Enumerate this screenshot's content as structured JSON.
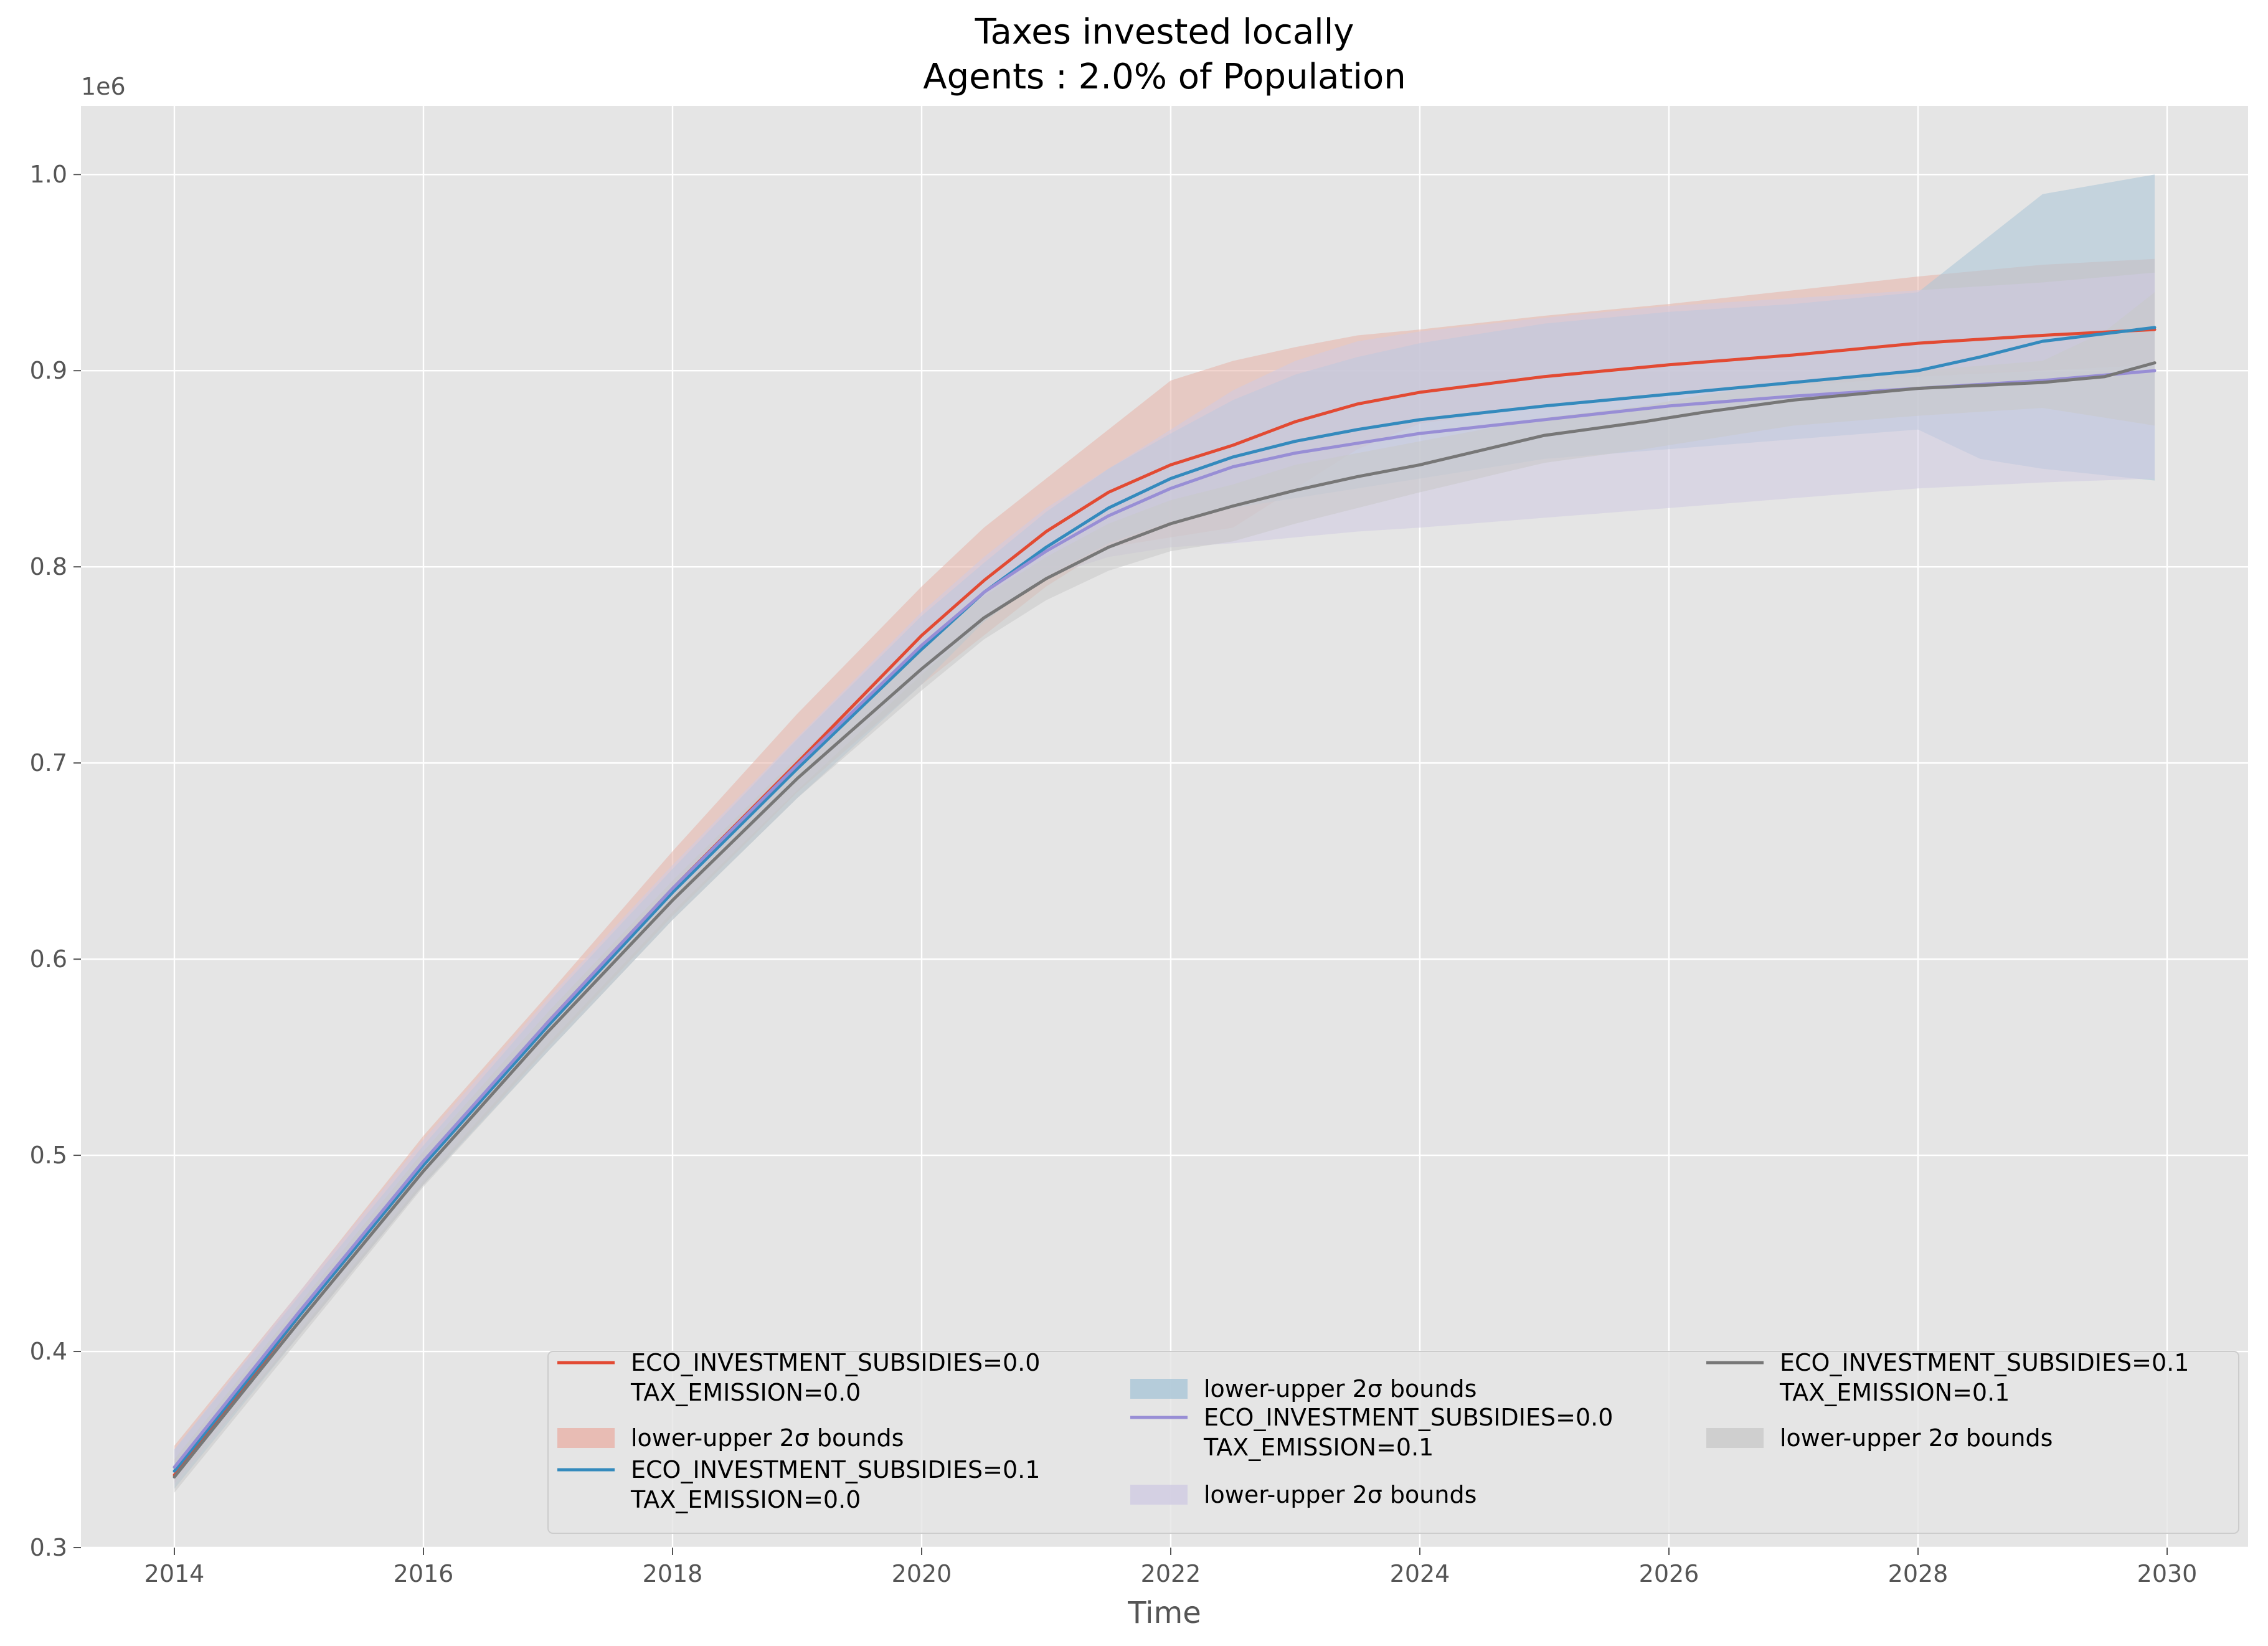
{
  "chart_data": {
    "type": "line",
    "title": "Taxes invested locally",
    "subtitle": "Agents : 2.0% of Population",
    "xlabel": "Time",
    "ylabel": "",
    "y_offset_label": "1e6",
    "xlim": [
      2013.25,
      2030.65
    ],
    "ylim": [
      0.3,
      1.035
    ],
    "y_scale_multiplier": 1000000,
    "grid": true,
    "legend_placement": "lower center, 3 columns",
    "x_ticks": [
      2014,
      2016,
      2018,
      2020,
      2022,
      2024,
      2026,
      2028,
      2030
    ],
    "x_tick_labels": [
      "2014",
      "2016",
      "2018",
      "2020",
      "2022",
      "2024",
      "2026",
      "2028",
      "2030"
    ],
    "y_ticks": [
      0.3,
      0.4,
      0.5,
      0.6,
      0.7,
      0.8,
      0.9,
      1.0
    ],
    "y_tick_labels": [
      "0.3",
      "0.4",
      "0.5",
      "0.6",
      "0.7",
      "0.8",
      "0.9",
      "1.0"
    ],
    "series": [
      {
        "name": "ECO_INVESTMENT_SUBSIDIES=0.0\nTAX_EMISSION=0.0",
        "color": "#E24A33",
        "band_color": "#E8B2A8",
        "x": [
          2014,
          2015,
          2016,
          2017,
          2018,
          2019,
          2020,
          2020.5,
          2021,
          2021.5,
          2022,
          2022.5,
          2023,
          2023.5,
          2024,
          2025,
          2026,
          2027,
          2028,
          2029,
          2029.9
        ],
        "values": [
          0.337,
          0.418,
          0.495,
          0.568,
          0.636,
          0.7,
          0.765,
          0.793,
          0.818,
          0.838,
          0.852,
          0.862,
          0.874,
          0.883,
          0.889,
          0.897,
          0.903,
          0.908,
          0.914,
          0.918,
          0.921
        ],
        "band_label": "lower-upper 2σ bounds",
        "band_upper": [
          0.352,
          0.43,
          0.51,
          0.582,
          0.655,
          0.725,
          0.79,
          0.82,
          0.845,
          0.87,
          0.895,
          0.905,
          0.912,
          0.918,
          0.921,
          0.928,
          0.934,
          0.941,
          0.948,
          0.954,
          0.957
        ],
        "band_lower": [
          0.333,
          0.408,
          0.485,
          0.555,
          0.622,
          0.685,
          0.74,
          0.765,
          0.79,
          0.81,
          0.815,
          0.82,
          0.84,
          0.86,
          0.873,
          0.882,
          0.888,
          0.892,
          0.897,
          0.9,
          0.903
        ]
      },
      {
        "name": "ECO_INVESTMENT_SUBSIDIES=0.1\nTAX_EMISSION=0.0",
        "color": "#348ABD",
        "band_color": "#A9C5D7",
        "x": [
          2014,
          2015,
          2016,
          2017,
          2018,
          2019,
          2020,
          2020.5,
          2021,
          2021.5,
          2022,
          2022.5,
          2023,
          2023.5,
          2024,
          2025,
          2026,
          2027,
          2028,
          2028.5,
          2029,
          2029.9
        ],
        "values": [
          0.339,
          0.418,
          0.495,
          0.566,
          0.634,
          0.697,
          0.758,
          0.787,
          0.81,
          0.83,
          0.845,
          0.856,
          0.864,
          0.87,
          0.875,
          0.882,
          0.888,
          0.894,
          0.9,
          0.907,
          0.915,
          0.922
        ],
        "band_label": "lower-upper 2σ bounds",
        "band_upper": [
          0.35,
          0.428,
          0.505,
          0.578,
          0.646,
          0.712,
          0.775,
          0.802,
          0.828,
          0.85,
          0.868,
          0.885,
          0.898,
          0.907,
          0.914,
          0.924,
          0.93,
          0.934,
          0.94,
          0.965,
          0.99,
          1.0
        ],
        "band_lower": [
          0.33,
          0.408,
          0.485,
          0.553,
          0.62,
          0.682,
          0.74,
          0.772,
          0.795,
          0.812,
          0.823,
          0.83,
          0.835,
          0.84,
          0.845,
          0.855,
          0.86,
          0.865,
          0.87,
          0.855,
          0.85,
          0.844
        ]
      },
      {
        "name": "ECO_INVESTMENT_SUBSIDIES=0.0\nTAX_EMISSION=0.1",
        "color": "#988ED5",
        "band_color": "#CFCBE2",
        "x": [
          2014,
          2015,
          2016,
          2017,
          2018,
          2019,
          2020,
          2020.5,
          2021,
          2021.5,
          2022,
          2022.5,
          2023,
          2023.5,
          2024,
          2025,
          2026,
          2027,
          2028,
          2029,
          2029.9
        ],
        "values": [
          0.341,
          0.42,
          0.497,
          0.568,
          0.636,
          0.699,
          0.76,
          0.787,
          0.808,
          0.826,
          0.84,
          0.851,
          0.858,
          0.863,
          0.868,
          0.875,
          0.882,
          0.887,
          0.891,
          0.895,
          0.9
        ],
        "band_label": "lower-upper 2σ bounds",
        "band_upper": [
          0.35,
          0.43,
          0.508,
          0.58,
          0.648,
          0.713,
          0.777,
          0.805,
          0.83,
          0.85,
          0.87,
          0.89,
          0.905,
          0.915,
          0.92,
          0.927,
          0.933,
          0.937,
          0.941,
          0.945,
          0.95
        ],
        "band_lower": [
          0.332,
          0.41,
          0.487,
          0.557,
          0.624,
          0.686,
          0.745,
          0.773,
          0.795,
          0.805,
          0.81,
          0.812,
          0.815,
          0.818,
          0.82,
          0.825,
          0.83,
          0.835,
          0.84,
          0.843,
          0.845
        ]
      },
      {
        "name": "ECO_INVESTMENT_SUBSIDIES=0.1\nTAX_EMISSION=0.1",
        "color": "#777777",
        "band_color": "#C9C9C9",
        "x": [
          2014,
          2015,
          2016,
          2017,
          2018,
          2019,
          2020,
          2020.5,
          2021,
          2021.5,
          2022,
          2022.5,
          2023,
          2023.5,
          2024,
          2025,
          2025.8,
          2026.3,
          2027,
          2028,
          2029,
          2029.5,
          2029.9
        ],
        "values": [
          0.336,
          0.415,
          0.492,
          0.563,
          0.63,
          0.692,
          0.748,
          0.774,
          0.794,
          0.81,
          0.822,
          0.831,
          0.839,
          0.846,
          0.852,
          0.867,
          0.874,
          0.879,
          0.885,
          0.891,
          0.894,
          0.897,
          0.904
        ],
        "band_label": "lower-upper 2σ bounds",
        "band_upper": [
          0.345,
          0.424,
          0.502,
          0.573,
          0.64,
          0.703,
          0.76,
          0.785,
          0.805,
          0.822,
          0.834,
          0.842,
          0.852,
          0.858,
          0.864,
          0.876,
          0.882,
          0.888,
          0.894,
          0.9,
          0.905,
          0.92,
          0.94
        ],
        "band_lower": [
          0.328,
          0.406,
          0.484,
          0.553,
          0.62,
          0.682,
          0.737,
          0.763,
          0.783,
          0.798,
          0.808,
          0.813,
          0.822,
          0.83,
          0.838,
          0.853,
          0.86,
          0.865,
          0.872,
          0.877,
          0.881,
          0.876,
          0.872
        ]
      }
    ]
  }
}
